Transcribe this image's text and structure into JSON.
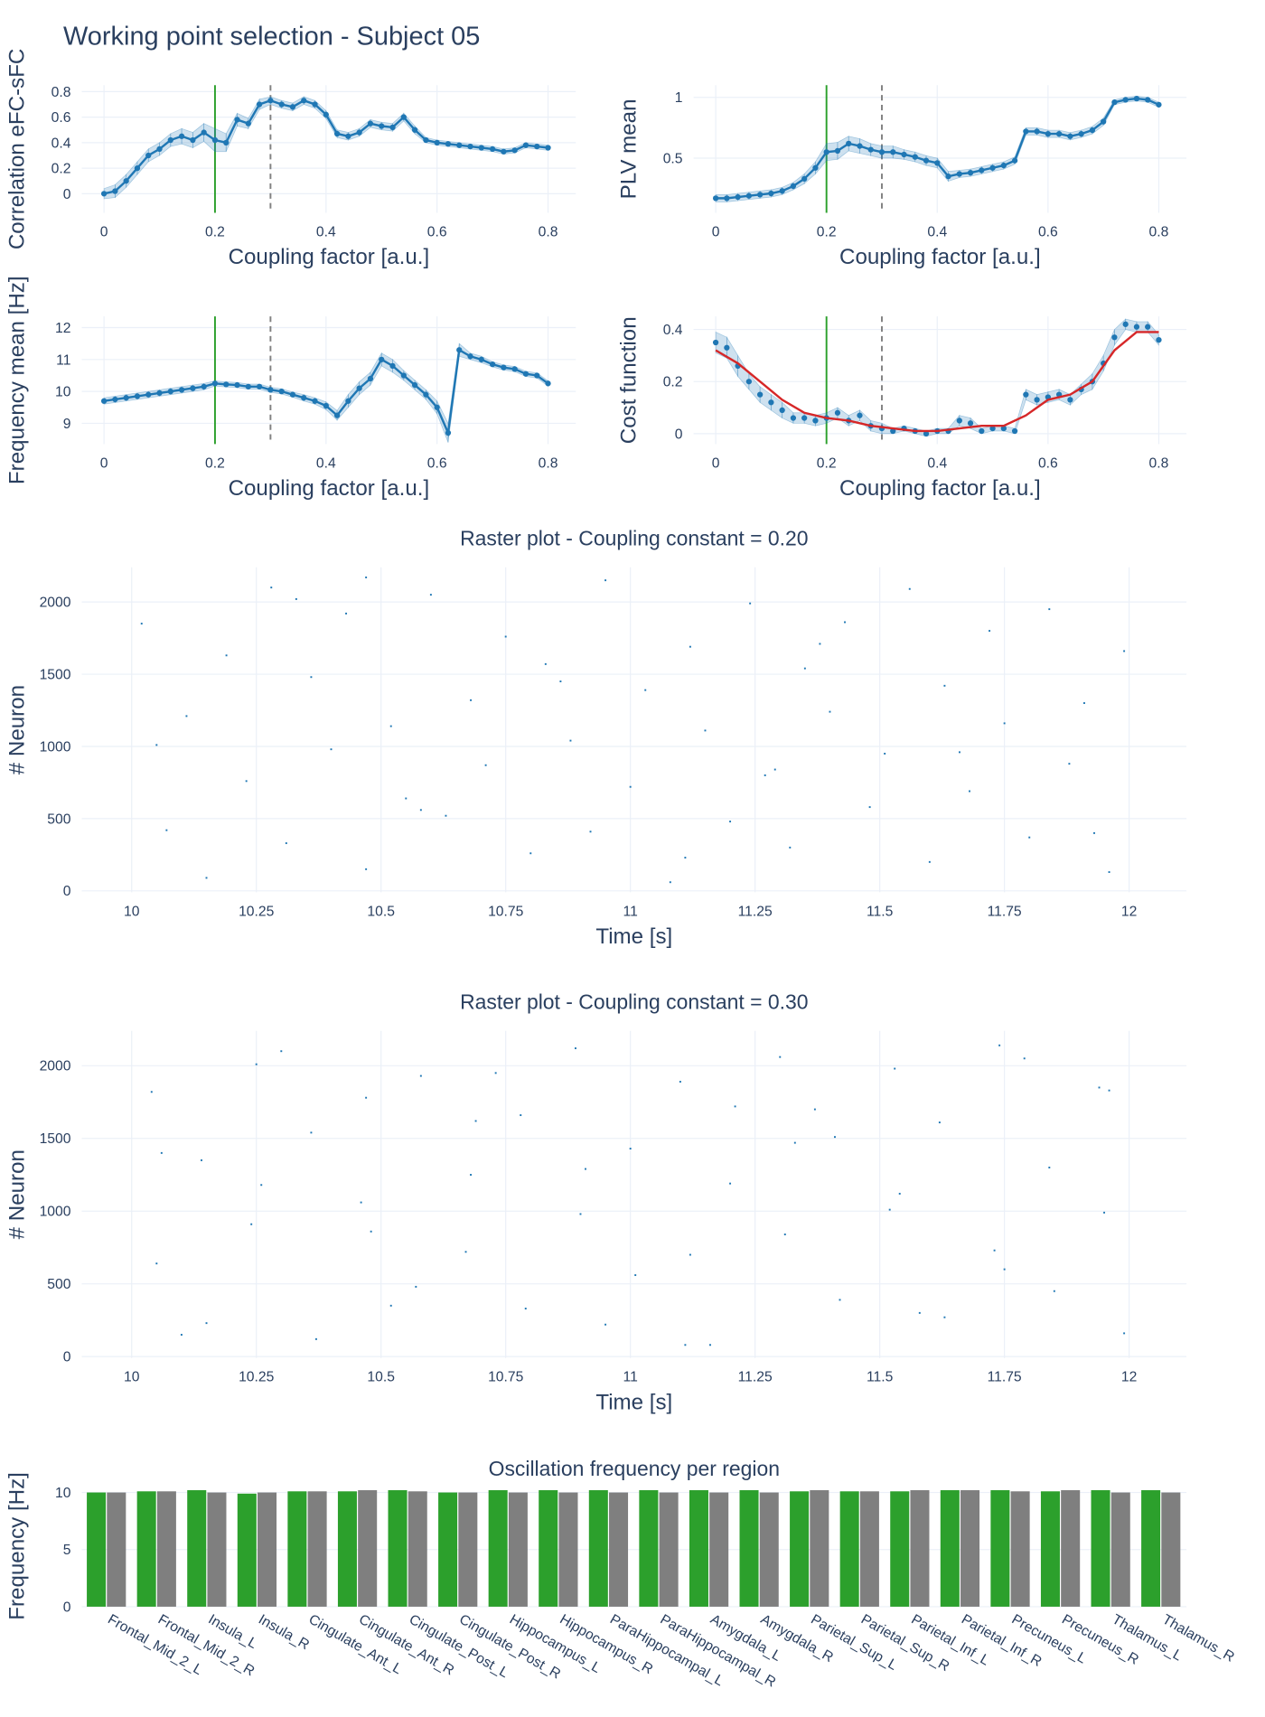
{
  "title": "Working point selection - Subject 05",
  "chart_data": [
    {
      "type": "line",
      "xlabel": "Coupling factor [a.u.]",
      "ylabel": "Correlation eFC-sFC",
      "x": [
        0,
        0.02,
        0.04,
        0.06,
        0.08,
        0.1,
        0.12,
        0.14,
        0.16,
        0.18,
        0.2,
        0.22,
        0.24,
        0.26,
        0.28,
        0.3,
        0.32,
        0.34,
        0.36,
        0.38,
        0.4,
        0.42,
        0.44,
        0.46,
        0.48,
        0.5,
        0.52,
        0.54,
        0.56,
        0.58,
        0.6,
        0.62,
        0.64,
        0.66,
        0.68,
        0.7,
        0.72,
        0.74,
        0.76,
        0.78,
        0.8
      ],
      "series": [
        {
          "color": "#1f77b4",
          "mode": "lines+markers",
          "values": [
            0.0,
            0.02,
            0.1,
            0.2,
            0.3,
            0.35,
            0.42,
            0.45,
            0.42,
            0.48,
            0.42,
            0.4,
            0.58,
            0.55,
            0.7,
            0.73,
            0.7,
            0.68,
            0.73,
            0.7,
            0.62,
            0.47,
            0.45,
            0.48,
            0.55,
            0.53,
            0.52,
            0.6,
            0.5,
            0.42,
            0.4,
            0.39,
            0.38,
            0.37,
            0.36,
            0.35,
            0.33,
            0.34,
            0.38,
            0.37,
            0.36
          ],
          "errors": [
            0.04,
            0.05,
            0.05,
            0.05,
            0.05,
            0.05,
            0.05,
            0.06,
            0.06,
            0.07,
            0.09,
            0.07,
            0.05,
            0.04,
            0.04,
            0.03,
            0.03,
            0.03,
            0.03,
            0.03,
            0.03,
            0.03,
            0.03,
            0.03,
            0.03,
            0.03,
            0.03,
            0.03,
            0.03,
            0.02,
            0.02,
            0.02,
            0.02,
            0.02,
            0.02,
            0.02,
            0.02,
            0.02,
            0.02,
            0.02,
            0.02
          ]
        }
      ],
      "vlines": [
        {
          "x": 0.2,
          "color": "#2ca02c",
          "dash": "solid"
        },
        {
          "x": 0.3,
          "color": "#808080",
          "dash": "dash"
        }
      ],
      "xlim": [
        -0.04,
        0.85
      ],
      "ylim": [
        -0.15,
        0.85
      ],
      "xticks": [
        0,
        0.2,
        0.4,
        0.6,
        0.8
      ],
      "yticks": [
        0,
        0.2,
        0.4,
        0.6,
        0.8
      ],
      "grid": true
    },
    {
      "type": "line",
      "xlabel": "Coupling factor [a.u.]",
      "ylabel": "PLV mean",
      "x": [
        0,
        0.02,
        0.04,
        0.06,
        0.08,
        0.1,
        0.12,
        0.14,
        0.16,
        0.18,
        0.2,
        0.22,
        0.24,
        0.26,
        0.28,
        0.3,
        0.32,
        0.34,
        0.36,
        0.38,
        0.4,
        0.42,
        0.44,
        0.46,
        0.48,
        0.5,
        0.52,
        0.54,
        0.56,
        0.58,
        0.6,
        0.62,
        0.64,
        0.66,
        0.68,
        0.7,
        0.72,
        0.74,
        0.76,
        0.78,
        0.8
      ],
      "series": [
        {
          "color": "#1f77b4",
          "mode": "lines+markers",
          "values": [
            0.17,
            0.17,
            0.18,
            0.19,
            0.2,
            0.21,
            0.23,
            0.27,
            0.33,
            0.42,
            0.55,
            0.56,
            0.62,
            0.6,
            0.57,
            0.55,
            0.55,
            0.53,
            0.51,
            0.48,
            0.46,
            0.35,
            0.37,
            0.38,
            0.4,
            0.42,
            0.44,
            0.48,
            0.72,
            0.72,
            0.7,
            0.7,
            0.68,
            0.7,
            0.73,
            0.8,
            0.96,
            0.98,
            0.99,
            0.98,
            0.94
          ],
          "errors": [
            0.03,
            0.03,
            0.03,
            0.03,
            0.03,
            0.03,
            0.03,
            0.03,
            0.04,
            0.05,
            0.07,
            0.07,
            0.06,
            0.06,
            0.05,
            0.05,
            0.05,
            0.04,
            0.04,
            0.04,
            0.04,
            0.04,
            0.03,
            0.03,
            0.03,
            0.03,
            0.03,
            0.03,
            0.03,
            0.03,
            0.03,
            0.03,
            0.03,
            0.03,
            0.03,
            0.03,
            0.02,
            0.02,
            0.02,
            0.02,
            0.02
          ]
        }
      ],
      "vlines": [
        {
          "x": 0.2,
          "color": "#2ca02c",
          "dash": "solid"
        },
        {
          "x": 0.3,
          "color": "#808080",
          "dash": "dash"
        }
      ],
      "xlim": [
        -0.04,
        0.85
      ],
      "ylim": [
        0.05,
        1.1
      ],
      "xticks": [
        0,
        0.2,
        0.4,
        0.6,
        0.8
      ],
      "yticks": [
        0.5,
        1
      ],
      "grid": true
    },
    {
      "type": "line",
      "xlabel": "Coupling factor [a.u.]",
      "ylabel": "Frequency mean [Hz]",
      "x": [
        0,
        0.02,
        0.04,
        0.06,
        0.08,
        0.1,
        0.12,
        0.14,
        0.16,
        0.18,
        0.2,
        0.22,
        0.24,
        0.26,
        0.28,
        0.3,
        0.32,
        0.34,
        0.36,
        0.38,
        0.4,
        0.42,
        0.44,
        0.46,
        0.48,
        0.5,
        0.52,
        0.54,
        0.56,
        0.58,
        0.6,
        0.62,
        0.64,
        0.66,
        0.68,
        0.7,
        0.72,
        0.74,
        0.76,
        0.78,
        0.8
      ],
      "series": [
        {
          "color": "#1f77b4",
          "mode": "lines+markers",
          "values": [
            9.7,
            9.75,
            9.8,
            9.85,
            9.9,
            9.95,
            10.0,
            10.05,
            10.1,
            10.15,
            10.25,
            10.22,
            10.2,
            10.15,
            10.15,
            10.05,
            10.0,
            9.9,
            9.8,
            9.7,
            9.55,
            9.25,
            9.7,
            10.1,
            10.4,
            11.0,
            10.8,
            10.5,
            10.2,
            9.9,
            9.5,
            8.7,
            11.3,
            11.1,
            11.0,
            10.85,
            10.75,
            10.7,
            10.55,
            10.5,
            10.25
          ],
          "errors": [
            0.1,
            0.1,
            0.1,
            0.1,
            0.1,
            0.1,
            0.1,
            0.1,
            0.1,
            0.1,
            0.08,
            0.08,
            0.08,
            0.08,
            0.08,
            0.08,
            0.08,
            0.08,
            0.1,
            0.1,
            0.12,
            0.15,
            0.2,
            0.2,
            0.2,
            0.2,
            0.2,
            0.15,
            0.15,
            0.15,
            0.2,
            0.3,
            0.2,
            0.1,
            0.1,
            0.08,
            0.08,
            0.08,
            0.08,
            0.08,
            0.08
          ]
        }
      ],
      "vlines": [
        {
          "x": 0.2,
          "color": "#2ca02c",
          "dash": "solid"
        },
        {
          "x": 0.3,
          "color": "#808080",
          "dash": "dash"
        }
      ],
      "xlim": [
        -0.04,
        0.85
      ],
      "ylim": [
        8.35,
        12.35
      ],
      "xticks": [
        0,
        0.2,
        0.4,
        0.6,
        0.8
      ],
      "yticks": [
        9,
        10,
        11,
        12
      ],
      "grid": true
    },
    {
      "type": "line",
      "xlabel": "Coupling factor [a.u.]",
      "ylabel": "Cost function",
      "x": [
        0,
        0.02,
        0.04,
        0.06,
        0.08,
        0.1,
        0.12,
        0.14,
        0.16,
        0.18,
        0.2,
        0.22,
        0.24,
        0.26,
        0.28,
        0.3,
        0.32,
        0.34,
        0.36,
        0.38,
        0.4,
        0.42,
        0.44,
        0.46,
        0.48,
        0.5,
        0.52,
        0.54,
        0.56,
        0.58,
        0.6,
        0.62,
        0.64,
        0.66,
        0.68,
        0.7,
        0.72,
        0.74,
        0.76,
        0.78,
        0.8
      ],
      "series": [
        {
          "color": "#1f77b4",
          "mode": "markers",
          "values": [
            0.35,
            0.33,
            0.26,
            0.2,
            0.15,
            0.12,
            0.09,
            0.06,
            0.06,
            0.05,
            0.06,
            0.08,
            0.05,
            0.07,
            0.03,
            0.02,
            0.01,
            0.02,
            0.01,
            0.0,
            0.01,
            0.01,
            0.05,
            0.04,
            0.01,
            0.02,
            0.02,
            0.01,
            0.15,
            0.13,
            0.14,
            0.15,
            0.13,
            0.17,
            0.2,
            0.27,
            0.37,
            0.42,
            0.41,
            0.41,
            0.36
          ],
          "errors": [
            0.04,
            0.04,
            0.04,
            0.03,
            0.03,
            0.03,
            0.03,
            0.02,
            0.02,
            0.02,
            0.02,
            0.02,
            0.02,
            0.02,
            0.02,
            0.02,
            0.01,
            0.01,
            0.01,
            0.01,
            0.01,
            0.01,
            0.02,
            0.02,
            0.01,
            0.01,
            0.01,
            0.01,
            0.02,
            0.02,
            0.02,
            0.02,
            0.02,
            0.02,
            0.03,
            0.03,
            0.03,
            0.02,
            0.02,
            0.02,
            0.02
          ]
        },
        {
          "color": "#d62728",
          "mode": "lines",
          "x": [
            0,
            0.04,
            0.08,
            0.12,
            0.16,
            0.2,
            0.24,
            0.28,
            0.32,
            0.36,
            0.4,
            0.44,
            0.48,
            0.52,
            0.56,
            0.6,
            0.64,
            0.68,
            0.72,
            0.76,
            0.8
          ],
          "values": [
            0.32,
            0.27,
            0.2,
            0.13,
            0.08,
            0.06,
            0.05,
            0.03,
            0.02,
            0.01,
            0.01,
            0.02,
            0.03,
            0.03,
            0.07,
            0.13,
            0.15,
            0.2,
            0.32,
            0.39,
            0.39
          ]
        }
      ],
      "vlines": [
        {
          "x": 0.2,
          "color": "#2ca02c",
          "dash": "solid"
        },
        {
          "x": 0.3,
          "color": "#808080",
          "dash": "dash"
        }
      ],
      "xlim": [
        -0.04,
        0.85
      ],
      "ylim": [
        -0.04,
        0.45
      ],
      "xticks": [
        0,
        0.2,
        0.4,
        0.6,
        0.8
      ],
      "yticks": [
        0,
        0.2,
        0.4
      ],
      "grid": true
    },
    {
      "type": "scatter",
      "title": "Raster plot - Coupling constant = 0.20",
      "xlabel": "Time [s]",
      "ylabel": "# Neuron",
      "series": [
        {
          "color": "#1f77b4",
          "x": [
            10.02,
            10.07,
            10.11,
            10.15,
            10.19,
            10.23,
            10.28,
            10.31,
            10.36,
            10.4,
            10.43,
            10.47,
            10.52,
            10.55,
            10.6,
            10.63,
            10.68,
            10.71,
            10.75,
            10.8,
            10.83,
            10.88,
            10.92,
            10.95,
            11.0,
            11.03,
            11.08,
            11.12,
            11.15,
            11.2,
            11.24,
            11.27,
            11.32,
            11.35,
            11.4,
            11.43,
            11.48,
            11.51,
            11.56,
            11.6,
            11.63,
            11.68,
            11.72,
            11.75,
            11.8,
            11.84,
            11.88,
            11.91,
            11.96,
            11.99,
            10.05,
            10.33,
            10.58,
            10.86,
            11.11,
            11.38,
            11.66,
            11.93,
            10.47,
            11.29
          ],
          "values": [
            1850,
            420,
            1210,
            90,
            1630,
            760,
            2100,
            330,
            1480,
            980,
            1920,
            150,
            1140,
            640,
            2050,
            520,
            1320,
            870,
            1760,
            260,
            1570,
            1040,
            410,
            2150,
            720,
            1390,
            60,
            1690,
            1110,
            480,
            1990,
            800,
            300,
            1540,
            1240,
            1860,
            580,
            950,
            2090,
            200,
            1420,
            690,
            1800,
            1160,
            370,
            1950,
            880,
            1300,
            130,
            1660,
            1010,
            2020,
            560,
            1450,
            230,
            1710,
            960,
            400,
            2170,
            840
          ]
        }
      ],
      "xlim": [
        9.9,
        12.115
      ],
      "ylim": [
        -10,
        2240
      ],
      "xticks": [
        10,
        10.25,
        10.5,
        10.75,
        11,
        11.25,
        11.5,
        11.75,
        12
      ],
      "yticks": [
        0,
        500,
        1000,
        1500,
        2000
      ],
      "grid": true
    },
    {
      "type": "scatter",
      "title": "Raster plot - Coupling constant = 0.30",
      "xlabel": "Time [s]",
      "ylabel": "# Neuron",
      "series": [
        {
          "color": "#1f77b4",
          "x": [
            10.04,
            10.05,
            10.14,
            10.15,
            10.25,
            10.24,
            10.36,
            10.37,
            10.47,
            10.46,
            10.57,
            10.58,
            10.68,
            10.67,
            10.78,
            10.79,
            10.89,
            10.9,
            11.0,
            11.01,
            11.1,
            11.11,
            11.2,
            11.21,
            11.31,
            11.3,
            11.42,
            11.41,
            11.52,
            11.53,
            11.63,
            11.62,
            11.73,
            11.74,
            11.84,
            11.85,
            11.94,
            11.95,
            10.1,
            10.3,
            10.52,
            10.73,
            10.95,
            11.16,
            11.37,
            11.58,
            11.79,
            11.99,
            10.06,
            10.26,
            10.48,
            10.69,
            10.91,
            11.12,
            11.33,
            11.54,
            11.75,
            11.96
          ],
          "values": [
            1820,
            640,
            1350,
            230,
            2010,
            910,
            1540,
            120,
            1780,
            1060,
            480,
            1930,
            1250,
            720,
            1660,
            330,
            2120,
            980,
            1430,
            560,
            1890,
            80,
            1190,
            1720,
            840,
            2060,
            390,
            1510,
            1010,
            1980,
            270,
            1610,
            730,
            2140,
            1300,
            450,
            1850,
            990,
            150,
            2100,
            350,
            1950,
            220,
            80,
            1700,
            300,
            2050,
            160,
            1400,
            1180,
            860,
            1620,
            1290,
            700,
            1470,
            1120,
            600,
            1830
          ]
        }
      ],
      "xlim": [
        9.9,
        12.115
      ],
      "ylim": [
        -10,
        2240
      ],
      "xticks": [
        10,
        10.25,
        10.5,
        10.75,
        11,
        11.25,
        11.5,
        11.75,
        12
      ],
      "yticks": [
        0,
        500,
        1000,
        1500,
        2000
      ],
      "grid": true
    },
    {
      "type": "bar",
      "title": "Oscillation frequency per region",
      "ylabel": "Frequency [Hz]",
      "categories": [
        "Frontal_Mid_2_L",
        "Frontal_Mid_2_R",
        "Insula_L",
        "Insula_R",
        "Cingulate_Ant_L",
        "Cingulate_Ant_R",
        "Cingulate_Post_L",
        "Cingulate_Post_R",
        "Hippocampus_L",
        "Hippocampus_R",
        "ParaHippocampal_L",
        "ParaHippocampal_R",
        "Amygdala_L",
        "Amygdala_R",
        "Parietal_Sup_L",
        "Parietal_Sup_R",
        "Parietal_Inf_L",
        "Parietal_Inf_R",
        "Precuneus_L",
        "Precuneus_R",
        "Thalamus_L",
        "Thalamus_R"
      ],
      "series": [
        {
          "color": "#2ca02c",
          "values": [
            10.0,
            10.1,
            10.2,
            9.9,
            10.1,
            10.1,
            10.2,
            10.0,
            10.2,
            10.2,
            10.2,
            10.2,
            10.2,
            10.2,
            10.1,
            10.1,
            10.1,
            10.2,
            10.2,
            10.1,
            10.2,
            10.2
          ]
        },
        {
          "color": "#7f7f7f",
          "values": [
            10.0,
            10.1,
            10.0,
            10.0,
            10.1,
            10.2,
            10.1,
            10.0,
            10.0,
            10.0,
            10.0,
            10.0,
            10.0,
            10.0,
            10.2,
            10.1,
            10.2,
            10.2,
            10.1,
            10.2,
            10.0,
            10.0
          ]
        }
      ],
      "ylim": [
        0,
        10.6
      ],
      "yticks": [
        0,
        5,
        10
      ],
      "grid": true
    }
  ]
}
